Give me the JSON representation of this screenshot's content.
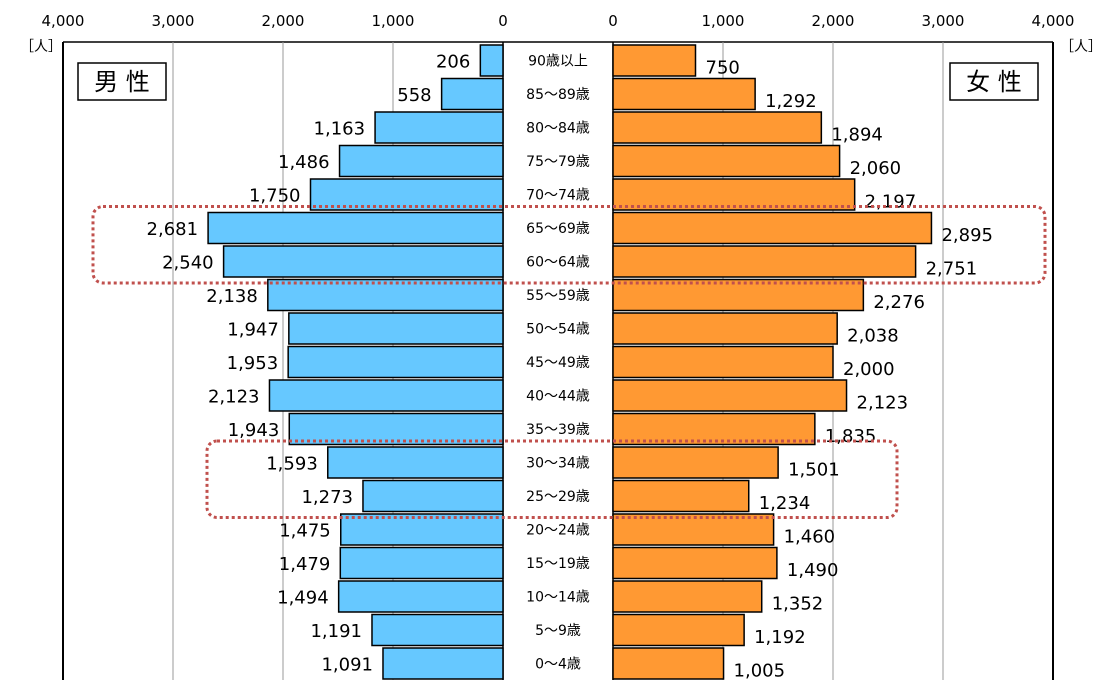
{
  "chart_data": {
    "type": "bar",
    "orientation": "horizontal-butterfly",
    "unit_label": "［人］",
    "axis_ticks": [
      "4,000",
      "3,000",
      "2,000",
      "1,000",
      "0"
    ],
    "xlim": [
      0,
      4000
    ],
    "grid": true,
    "legend": "none",
    "colors": {
      "male": "#66c8ff",
      "female": "#ff9933",
      "highlight": "#c0504d"
    },
    "categories": [
      "90歳以上",
      "85～89歳",
      "80～84歳",
      "75～79歳",
      "70～74歳",
      "65～69歳",
      "60～64歳",
      "55～59歳",
      "50～54歳",
      "45～49歳",
      "40～44歳",
      "35～39歳",
      "30～34歳",
      "25～29歳",
      "20～24歳",
      "15～19歳",
      "10～14歳",
      "5～9歳",
      "0～4歳"
    ],
    "category_display": [
      "90歳以上",
      "85～89歳",
      "80～84歳",
      "75～79歳",
      "70～74歳",
      "65～69歳",
      "60～64歳",
      "55～59歳",
      "50～54歳",
      "45～49歳",
      "40～44歳",
      "35～39歳",
      "30～34歳",
      "25～29歳",
      "20～24歳",
      "15～19歳",
      "10～14歳",
      "5～9歳",
      "0～4歳"
    ],
    "series": [
      {
        "name": "男 性",
        "side": "left",
        "values": [
          206,
          558,
          1163,
          1486,
          1750,
          2681,
          2540,
          2138,
          1947,
          1953,
          2123,
          1943,
          1593,
          1273,
          1475,
          1479,
          1494,
          1191,
          1091
        ],
        "labels": [
          "206",
          "558",
          "1,163",
          "1,486",
          "1,750",
          "2,681",
          "2,540",
          "2,138",
          "1,947",
          "1,953",
          "2,123",
          "1,943",
          "1,593",
          "1,273",
          "1,475",
          "1,479",
          "1,494",
          "1,191",
          "1,091"
        ]
      },
      {
        "name": "女 性",
        "side": "right",
        "values": [
          750,
          1292,
          1894,
          2060,
          2197,
          2895,
          2751,
          2276,
          2038,
          2000,
          2123,
          1835,
          1501,
          1234,
          1460,
          1490,
          1352,
          1192,
          1005
        ],
        "labels": [
          "750",
          "1,292",
          "1,894",
          "2,060",
          "2,197",
          "2,895",
          "2,751",
          "2,276",
          "2,038",
          "2,000",
          "2,123",
          "1,835",
          "1,501",
          "1,234",
          "1,460",
          "1,490",
          "1,352",
          "1,192",
          "1,005"
        ]
      }
    ],
    "highlight_groups": [
      [
        "65～69歳",
        "60～64歳"
      ],
      [
        "30～34歳",
        "25～29歳"
      ]
    ]
  }
}
